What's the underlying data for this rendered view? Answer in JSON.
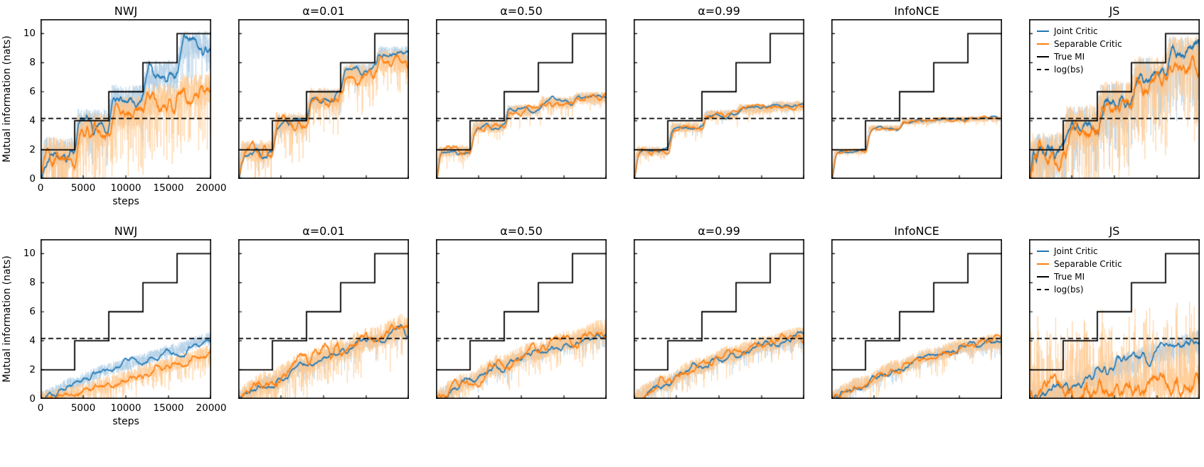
{
  "figure": {
    "ylabel": "Mutual information (nats)",
    "xlabel": "steps",
    "colors": {
      "joint": "#1f77b4",
      "separable": "#ff7f0e",
      "joint_light": "#aecde5",
      "separable_light": "#ffc88e",
      "true_mi": "#000000"
    },
    "legend": [
      {
        "label": "Joint Critic"
      },
      {
        "label": "Separable Critic"
      },
      {
        "label": "True MI"
      },
      {
        "label": "log(bs)"
      }
    ]
  },
  "chart_data": {
    "type": "line",
    "xlabel": "steps",
    "ylabel": "Mutual information (nats)",
    "xlim": [
      0,
      20000
    ],
    "ylim": [
      0,
      11
    ],
    "xticks": [
      0,
      5000,
      10000,
      15000,
      20000
    ],
    "yticks": [
      0,
      2,
      4,
      6,
      8,
      10
    ],
    "true_mi": {
      "segment_steps": 4000,
      "levels": [
        2,
        4,
        6,
        8,
        10
      ]
    },
    "log_bs": 4.16,
    "panels": [
      {
        "row": 0,
        "col": 0,
        "title": "NWJ",
        "series": [
          {
            "name": "Joint Critic",
            "color": "joint",
            "levels": [
              1.9,
              3.85,
              5.5,
              7.2,
              9.2
            ],
            "noise": 1.0,
            "spike": 0.12,
            "spike_mag": 2.5,
            "ramp": 0.1,
            "seed": 101
          },
          {
            "name": "Separable Critic",
            "color": "separable",
            "levels": [
              1.75,
              3.4,
              4.6,
              5.4,
              6.1
            ],
            "noise": 1.15,
            "spike": 0.22,
            "spike_mag": 3.2,
            "ramp": 0.12,
            "seed": 102
          }
        ]
      },
      {
        "row": 0,
        "col": 1,
        "title": "α=0.01",
        "series": [
          {
            "name": "Joint Critic",
            "color": "joint",
            "levels": [
              1.95,
              3.9,
              5.65,
              7.4,
              8.6
            ],
            "noise": 0.55,
            "spike": 0.08,
            "spike_mag": 2.0,
            "ramp": 0.1,
            "seed": 111
          },
          {
            "name": "Separable Critic",
            "color": "separable",
            "levels": [
              1.9,
              3.8,
              5.5,
              7.15,
              8.1
            ],
            "noise": 0.8,
            "spike": 0.15,
            "spike_mag": 2.6,
            "ramp": 0.1,
            "seed": 112
          }
        ]
      },
      {
        "row": 0,
        "col": 2,
        "title": "α=0.50",
        "series": [
          {
            "name": "Joint Critic",
            "color": "joint",
            "levels": [
              1.9,
              3.6,
              4.75,
              5.3,
              5.6
            ],
            "noise": 0.32,
            "spike": 0.06,
            "spike_mag": 1.8,
            "ramp": 0.1,
            "seed": 121
          },
          {
            "name": "Separable Critic",
            "color": "separable",
            "levels": [
              1.9,
              3.6,
              4.7,
              5.25,
              5.55
            ],
            "noise": 0.45,
            "spike": 0.1,
            "spike_mag": 2.0,
            "ramp": 0.1,
            "seed": 122
          }
        ]
      },
      {
        "row": 0,
        "col": 3,
        "title": "α=0.99",
        "series": [
          {
            "name": "Joint Critic",
            "color": "joint",
            "levels": [
              1.9,
              3.55,
              4.45,
              4.85,
              5.05
            ],
            "noise": 0.28,
            "spike": 0.05,
            "spike_mag": 1.6,
            "ramp": 0.1,
            "seed": 131
          },
          {
            "name": "Separable Critic",
            "color": "separable",
            "levels": [
              1.9,
              3.55,
              4.4,
              4.8,
              5.0
            ],
            "noise": 0.38,
            "spike": 0.08,
            "spike_mag": 1.8,
            "ramp": 0.1,
            "seed": 132
          }
        ]
      },
      {
        "row": 0,
        "col": 4,
        "title": "InfoNCE",
        "series": [
          {
            "name": "Joint Critic",
            "color": "joint",
            "levels": [
              1.9,
              3.5,
              3.95,
              4.1,
              4.15
            ],
            "noise": 0.16,
            "spike": 0.04,
            "spike_mag": 1.5,
            "ramp": 0.1,
            "seed": 141
          },
          {
            "name": "Separable Critic",
            "color": "separable",
            "levels": [
              1.9,
              3.5,
              3.95,
              4.08,
              4.13
            ],
            "noise": 0.22,
            "spike": 0.06,
            "spike_mag": 1.6,
            "ramp": 0.1,
            "seed": 142
          }
        ]
      },
      {
        "row": 0,
        "col": 5,
        "title": "JS",
        "series": [
          {
            "name": "Joint Critic",
            "color": "joint",
            "levels": [
              1.85,
              3.75,
              5.4,
              7.1,
              8.6
            ],
            "noise": 1.25,
            "spike": 0.2,
            "spike_mag": 3.0,
            "ramp": 0.1,
            "seed": 151
          },
          {
            "name": "Separable Critic",
            "color": "separable",
            "levels": [
              1.8,
              3.65,
              5.3,
              7.0,
              8.4
            ],
            "noise": 1.45,
            "spike": 0.25,
            "spike_mag": 3.2,
            "ramp": 0.1,
            "seed": 152
          }
        ]
      },
      {
        "row": 1,
        "col": 0,
        "title": "NWJ",
        "series": [
          {
            "name": "Joint Critic",
            "color": "joint",
            "levels": [
              1.1,
              2.0,
              2.7,
              3.4,
              4.2
            ],
            "noise": 0.45,
            "spike": 0.08,
            "spike_mag": 2.0,
            "ramp": 0.9,
            "seed": 201
          },
          {
            "name": "Separable Critic",
            "color": "separable",
            "levels": [
              0.4,
              1.1,
              1.8,
              2.5,
              3.2
            ],
            "noise": 0.55,
            "spike": 0.18,
            "spike_mag": 2.5,
            "ramp": 0.95,
            "seed": 202
          }
        ]
      },
      {
        "row": 1,
        "col": 1,
        "title": "α=0.01",
        "series": [
          {
            "name": "Joint Critic",
            "color": "joint",
            "levels": [
              1.1,
              2.3,
              3.2,
              3.95,
              4.7
            ],
            "noise": 0.5,
            "spike": 0.08,
            "spike_mag": 2.0,
            "ramp": 0.75,
            "seed": 211
          },
          {
            "name": "Separable Critic",
            "color": "separable",
            "levels": [
              1.1,
              2.35,
              3.3,
              4.1,
              5.0
            ],
            "noise": 0.85,
            "spike": 0.15,
            "spike_mag": 2.4,
            "ramp": 0.75,
            "seed": 212
          }
        ]
      },
      {
        "row": 1,
        "col": 2,
        "title": "α=0.50",
        "series": [
          {
            "name": "Joint Critic",
            "color": "joint",
            "levels": [
              1.1,
              2.3,
              3.15,
              3.85,
              4.5
            ],
            "noise": 0.5,
            "spike": 0.08,
            "spike_mag": 2.0,
            "ramp": 0.75,
            "seed": 221
          },
          {
            "name": "Separable Critic",
            "color": "separable",
            "levels": [
              1.1,
              2.35,
              3.25,
              4.0,
              4.75
            ],
            "noise": 0.7,
            "spike": 0.12,
            "spike_mag": 2.2,
            "ramp": 0.75,
            "seed": 222
          }
        ]
      },
      {
        "row": 1,
        "col": 3,
        "title": "α=0.99",
        "series": [
          {
            "name": "Joint Critic",
            "color": "joint",
            "levels": [
              1.05,
              2.2,
              3.05,
              3.7,
              4.25
            ],
            "noise": 0.5,
            "spike": 0.08,
            "spike_mag": 2.0,
            "ramp": 0.75,
            "seed": 231
          },
          {
            "name": "Separable Critic",
            "color": "separable",
            "levels": [
              1.1,
              2.25,
              3.1,
              3.8,
              4.35
            ],
            "noise": 0.6,
            "spike": 0.1,
            "spike_mag": 2.1,
            "ramp": 0.75,
            "seed": 232
          }
        ]
      },
      {
        "row": 1,
        "col": 4,
        "title": "InfoNCE",
        "series": [
          {
            "name": "Joint Critic",
            "color": "joint",
            "levels": [
              1.0,
              2.1,
              2.95,
              3.55,
              3.9
            ],
            "noise": 0.45,
            "spike": 0.07,
            "spike_mag": 1.9,
            "ramp": 0.75,
            "seed": 241
          },
          {
            "name": "Separable Critic",
            "color": "separable",
            "levels": [
              1.05,
              2.15,
              3.0,
              3.6,
              3.95
            ],
            "noise": 0.55,
            "spike": 0.1,
            "spike_mag": 2.0,
            "ramp": 0.75,
            "seed": 242
          }
        ]
      },
      {
        "row": 1,
        "col": 5,
        "title": "JS",
        "series": [
          {
            "name": "Joint Critic",
            "color": "joint",
            "levels": [
              0.6,
              1.6,
              2.5,
              3.3,
              3.95
            ],
            "noise": 0.8,
            "spike": 0.12,
            "spike_mag": 2.2,
            "ramp": 0.9,
            "seed": 251
          },
          {
            "name": "Separable Critic",
            "color": "separable",
            "levels": [
              0.15,
              0.35,
              0.6,
              0.9,
              1.2
            ],
            "noise": 1.2,
            "spike": 0.3,
            "spike_mag": 4.0,
            "spike_dir": 1,
            "ramp": 0.9,
            "seed": 252
          }
        ]
      }
    ]
  }
}
